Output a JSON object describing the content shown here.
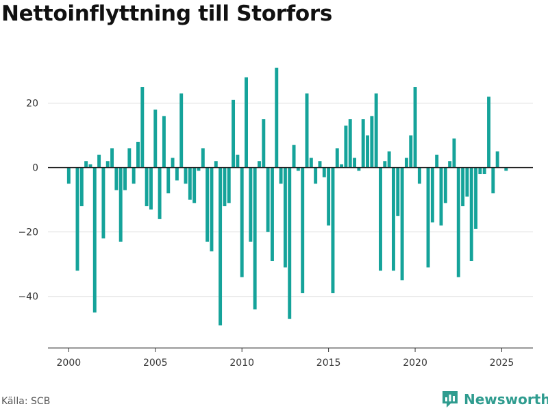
{
  "title": "Nettoinflyttning till Storfors",
  "source": "Källa: SCB",
  "brand": {
    "name": "Newsworthy",
    "icon": "newsworthy-logo-icon"
  },
  "colors": {
    "bar": "#15a39a",
    "zero_line": "#222222",
    "grid": "#dddddd",
    "brand": "#2f9c8f"
  },
  "chart_data": {
    "type": "bar",
    "title": "Nettoinflyttning till Storfors",
    "xlabel": "",
    "ylabel": "",
    "frequency": "quarterly",
    "x_start": 2000,
    "xlim": [
      1998.8,
      2026.8
    ],
    "ylim": [
      -56,
      35
    ],
    "yticks": [
      20,
      0,
      -20,
      -40
    ],
    "ytick_labels": [
      "20",
      "0",
      "−20",
      "−40"
    ],
    "xticks": [
      2000,
      2005,
      2010,
      2015,
      2020,
      2025
    ],
    "xtick_labels": [
      "2000",
      "2005",
      "2010",
      "2015",
      "2020",
      "2025"
    ],
    "grid": true,
    "values": [
      -5,
      0,
      -32,
      -12,
      2,
      1,
      -45,
      4,
      -22,
      2,
      6,
      -7,
      -23,
      -7,
      6,
      -5,
      8,
      25,
      -12,
      -13,
      18,
      -16,
      16,
      -8,
      3,
      -4,
      23,
      -5,
      -10,
      -11,
      -1,
      6,
      -23,
      -26,
      2,
      -49,
      -12,
      -11,
      21,
      4,
      -34,
      28,
      -23,
      -44,
      2,
      15,
      -20,
      -29,
      31,
      -5,
      -31,
      -47,
      7,
      -1,
      -39,
      23,
      3,
      -5,
      2,
      -3,
      -18,
      -39,
      6,
      1,
      13,
      15,
      3,
      -1,
      15,
      10,
      16,
      23,
      -32,
      2,
      5,
      -32,
      -15,
      -35,
      3,
      10,
      25,
      -5,
      0,
      -31,
      -17,
      4,
      -18,
      -11,
      2,
      9,
      -34,
      -12,
      -9,
      -29,
      -19,
      -2,
      -2,
      22,
      -8,
      5,
      0,
      -1
    ]
  }
}
